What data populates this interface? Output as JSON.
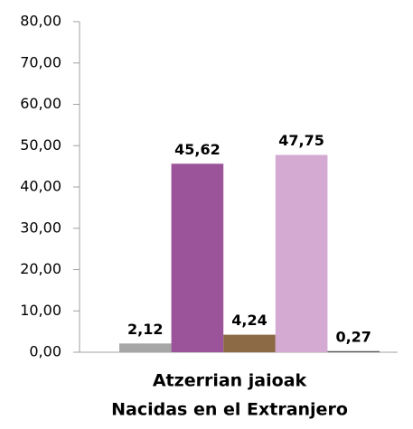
{
  "chart_data": {
    "type": "bar",
    "categories": [
      [
        "Atzerrian jaioak",
        "Nacidas en el Extranjero"
      ]
    ],
    "series": [
      {
        "color": "#a6a6a6",
        "values": [
          2.12
        ],
        "value_labels": [
          "2,12"
        ]
      },
      {
        "color": "#9b5499",
        "values": [
          45.62
        ],
        "value_labels": [
          "45,62"
        ]
      },
      {
        "color": "#8b6a45",
        "values": [
          4.24
        ],
        "value_labels": [
          "4,24"
        ]
      },
      {
        "color": "#d4aad3",
        "values": [
          47.75
        ],
        "value_labels": [
          "47,75"
        ]
      },
      {
        "color": "#595959",
        "values": [
          0.27
        ],
        "value_labels": [
          "0,27"
        ]
      }
    ],
    "ylim": [
      0,
      80
    ],
    "yticks": [
      {
        "value": 0,
        "label": "0,00"
      },
      {
        "value": 10,
        "label": "10,00"
      },
      {
        "value": 20,
        "label": "20,00"
      },
      {
        "value": 30,
        "label": "30,00"
      },
      {
        "value": 40,
        "label": "40,00"
      },
      {
        "value": 50,
        "label": "50,00"
      },
      {
        "value": 60,
        "label": "60,00"
      },
      {
        "value": 70,
        "label": "70,00"
      },
      {
        "value": 80,
        "label": "80,00"
      }
    ],
    "grid": false
  }
}
